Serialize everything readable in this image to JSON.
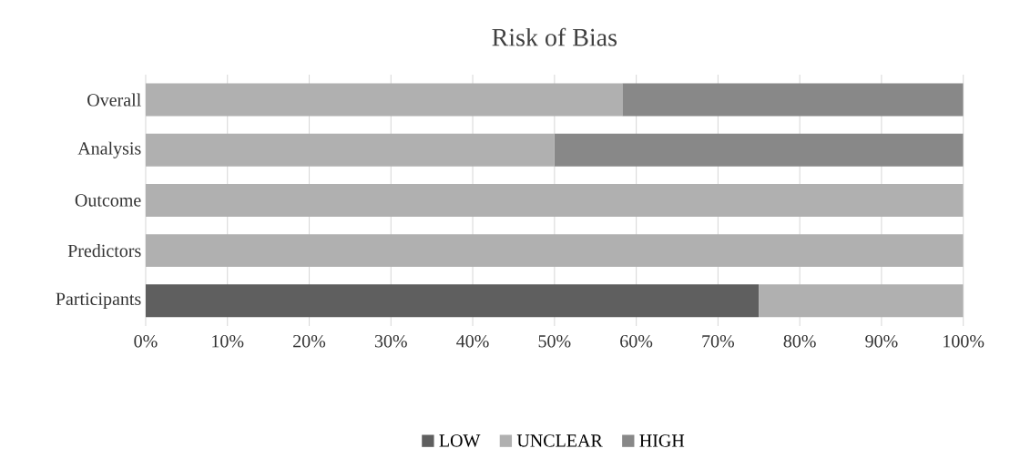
{
  "chart_data": {
    "type": "bar",
    "orientation": "horizontal",
    "stacked": true,
    "title": "Risk of Bias",
    "categories": [
      "Overall",
      "Analysis",
      "Outcome",
      "Predictors",
      "Participants"
    ],
    "series": [
      {
        "name": "LOW",
        "color": "#5f5f5f",
        "values": [
          0,
          0,
          0,
          0,
          75
        ]
      },
      {
        "name": "UNCLEAR",
        "color": "#b0b0b0",
        "values": [
          58.3,
          50,
          100,
          100,
          25
        ]
      },
      {
        "name": "HIGH",
        "color": "#888888",
        "values": [
          41.7,
          50,
          0,
          0,
          0
        ]
      }
    ],
    "xlim": [
      0,
      100
    ],
    "xticks": [
      {
        "value": 0,
        "label": "0%"
      },
      {
        "value": 10,
        "label": "10%"
      },
      {
        "value": 20,
        "label": "20%"
      },
      {
        "value": 30,
        "label": "30%"
      },
      {
        "value": 40,
        "label": "40%"
      },
      {
        "value": 50,
        "label": "50%"
      },
      {
        "value": 60,
        "label": "60%"
      },
      {
        "value": 70,
        "label": "70%"
      },
      {
        "value": 80,
        "label": "80%"
      },
      {
        "value": 90,
        "label": "90%"
      },
      {
        "value": 100,
        "label": "100%"
      }
    ],
    "grid": "x",
    "legend": "bottom"
  }
}
